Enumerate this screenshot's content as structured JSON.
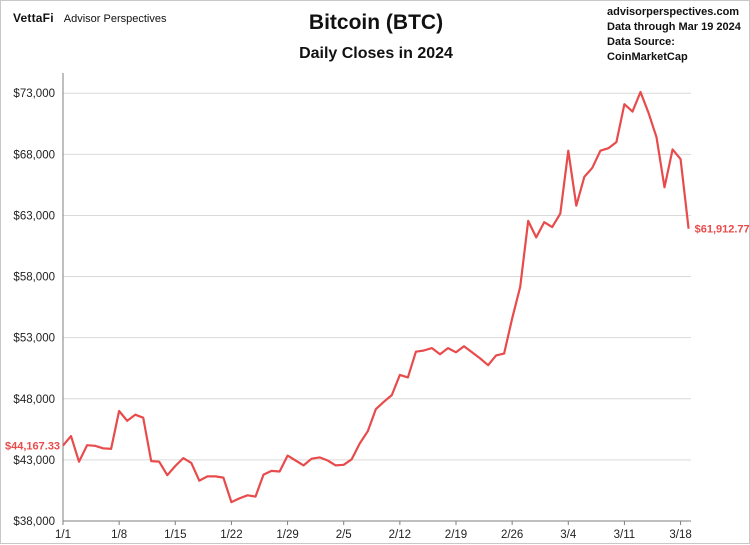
{
  "header": {
    "brand_logo": "VettaFi",
    "brand_name": "Advisor Perspectives",
    "source_lines": [
      "advisorperspectives.com",
      "Data through Mar 19 2024",
      "Data Source: CoinMarketCap"
    ]
  },
  "colors": {
    "line": "#e84b4b",
    "grid": "#d9d9d9",
    "axis": "#7f7f7f"
  },
  "chart_data": {
    "type": "line",
    "title": "Bitcoin (BTC)",
    "subtitle": "Daily Closes in 2024",
    "xlabel": "",
    "ylabel": "",
    "ylim": [
      38000,
      74000
    ],
    "y_ticks": [
      38000,
      43000,
      48000,
      53000,
      58000,
      63000,
      68000,
      73000
    ],
    "y_tick_labels": [
      "$38,000",
      "$43,000",
      "$48,000",
      "$53,000",
      "$58,000",
      "$63,000",
      "$68,000",
      "$73,000"
    ],
    "x_tick_labels": [
      "1/1",
      "1/8",
      "1/15",
      "1/22",
      "1/29",
      "2/5",
      "2/12",
      "2/19",
      "2/26",
      "3/4",
      "3/11",
      "3/18"
    ],
    "grid": true,
    "series": [
      {
        "x": [
          "1/1",
          "1/2",
          "1/3",
          "1/4",
          "1/5",
          "1/6",
          "1/7",
          "1/8",
          "1/9",
          "1/10",
          "1/11",
          "1/12",
          "1/13",
          "1/14",
          "1/15",
          "1/16",
          "1/17",
          "1/18",
          "1/19",
          "1/20",
          "1/21",
          "1/22",
          "1/23",
          "1/24",
          "1/25",
          "1/26",
          "1/27",
          "1/28",
          "1/29",
          "1/30",
          "1/31",
          "2/1",
          "2/2",
          "2/3",
          "2/4",
          "2/5",
          "2/6",
          "2/7",
          "2/8",
          "2/9",
          "2/10",
          "2/11",
          "2/12",
          "2/13",
          "2/14",
          "2/15",
          "2/16",
          "2/17",
          "2/18",
          "2/19",
          "2/20",
          "2/21",
          "2/22",
          "2/23",
          "2/24",
          "2/25",
          "2/26",
          "2/27",
          "2/28",
          "2/29",
          "3/1",
          "3/2",
          "3/3",
          "3/4",
          "3/5",
          "3/6",
          "3/7",
          "3/8",
          "3/9",
          "3/10",
          "3/11",
          "3/12",
          "3/13",
          "3/14",
          "3/15",
          "3/16",
          "3/17",
          "3/18",
          "3/19"
        ],
        "values": [
          44167,
          44950,
          42850,
          44200,
          44150,
          43950,
          43900,
          47000,
          46200,
          46700,
          46450,
          42900,
          42850,
          41750,
          42500,
          43150,
          42750,
          41300,
          41650,
          41650,
          41550,
          39550,
          39850,
          40100,
          40000,
          41800,
          42100,
          42050,
          43350,
          42950,
          42550,
          43100,
          43200,
          42950,
          42550,
          42600,
          43050,
          44350,
          45350,
          47150,
          47750,
          48300,
          49950,
          49750,
          51850,
          51950,
          52150,
          51650,
          52150,
          51800,
          52300,
          51800,
          51300,
          50750,
          51550,
          51700,
          54550,
          57150,
          62550,
          61200,
          62450,
          62050,
          63150,
          68300,
          63800,
          66150,
          66900,
          68300,
          68500,
          69000,
          72100,
          71500,
          73100,
          71400,
          69400,
          65300,
          68400,
          67600,
          61912.77
        ]
      }
    ],
    "annotations": {
      "start_label": "$44,167.33",
      "end_label": "$61,912.77"
    }
  }
}
